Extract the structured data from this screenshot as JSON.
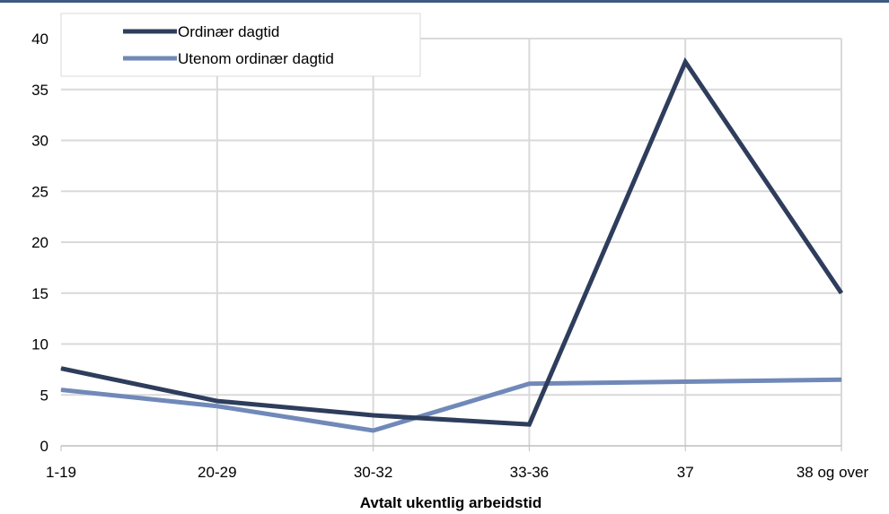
{
  "chart_data": {
    "type": "line",
    "title": "",
    "xlabel": "Avtalt ukentlig arbeidstid",
    "ylabel": "",
    "categories": [
      "1-19",
      "20-29",
      "30-32",
      "33-36",
      "37",
      "38 og over"
    ],
    "ylim": [
      0,
      40
    ],
    "yticks": [
      0,
      5,
      10,
      15,
      20,
      25,
      30,
      35,
      40
    ],
    "grid": true,
    "legend_position": "top-left",
    "series": [
      {
        "name": "Ordinær dagtid",
        "color": "#2e3d5c",
        "values": [
          7.6,
          4.4,
          3.0,
          2.1,
          37.7,
          15.0
        ]
      },
      {
        "name": "Utenom ordinær dagtid",
        "color": "#7089b8",
        "values": [
          5.5,
          3.9,
          1.5,
          6.1,
          6.3,
          6.5
        ]
      }
    ]
  }
}
